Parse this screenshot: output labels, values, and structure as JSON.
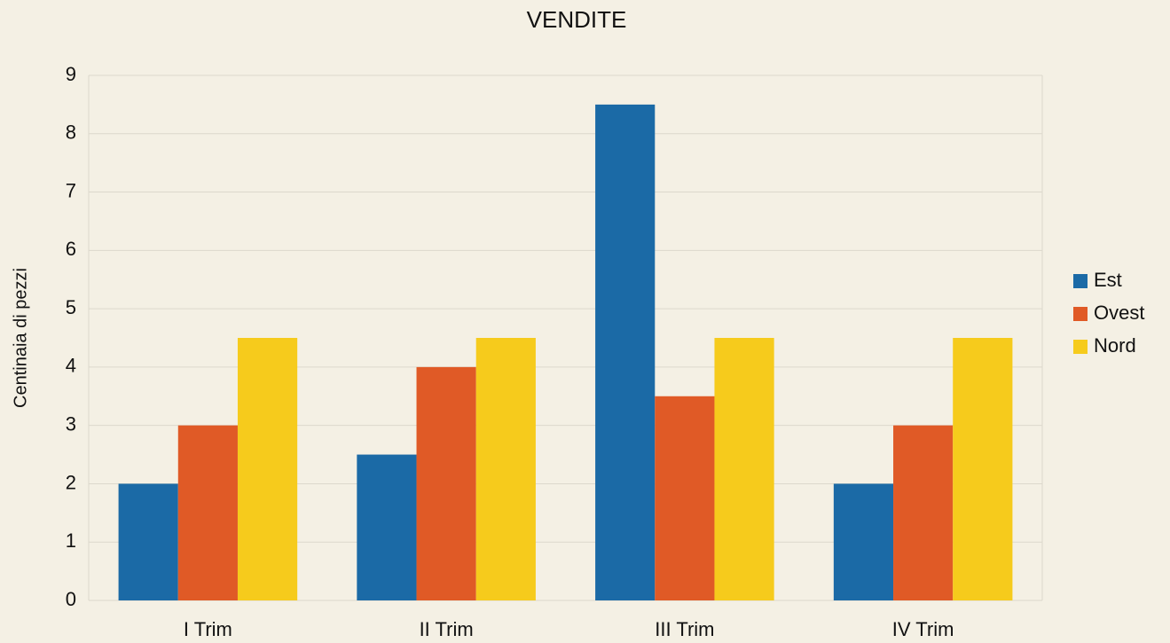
{
  "chart_data": {
    "type": "bar",
    "title": "VENDITE",
    "y_label": "Centinaia di pezzi",
    "categories": [
      "I Trim",
      "II Trim",
      "III Trim",
      "IV Trim"
    ],
    "series": [
      {
        "name": "Est",
        "color": "#1b6aa6",
        "values": [
          2,
          2.5,
          8.5,
          2
        ]
      },
      {
        "name": "Ovest",
        "color": "#e05a26",
        "values": [
          3,
          4,
          3.5,
          3
        ]
      },
      {
        "name": "Nord",
        "color": "#f6cb1c",
        "values": [
          4.5,
          4.5,
          4.5,
          4.5
        ]
      }
    ],
    "ylim": [
      0,
      9
    ],
    "yticks": [
      0,
      1,
      2,
      3,
      4,
      5,
      6,
      7,
      8,
      9
    ],
    "grid": true,
    "legend": "right"
  }
}
